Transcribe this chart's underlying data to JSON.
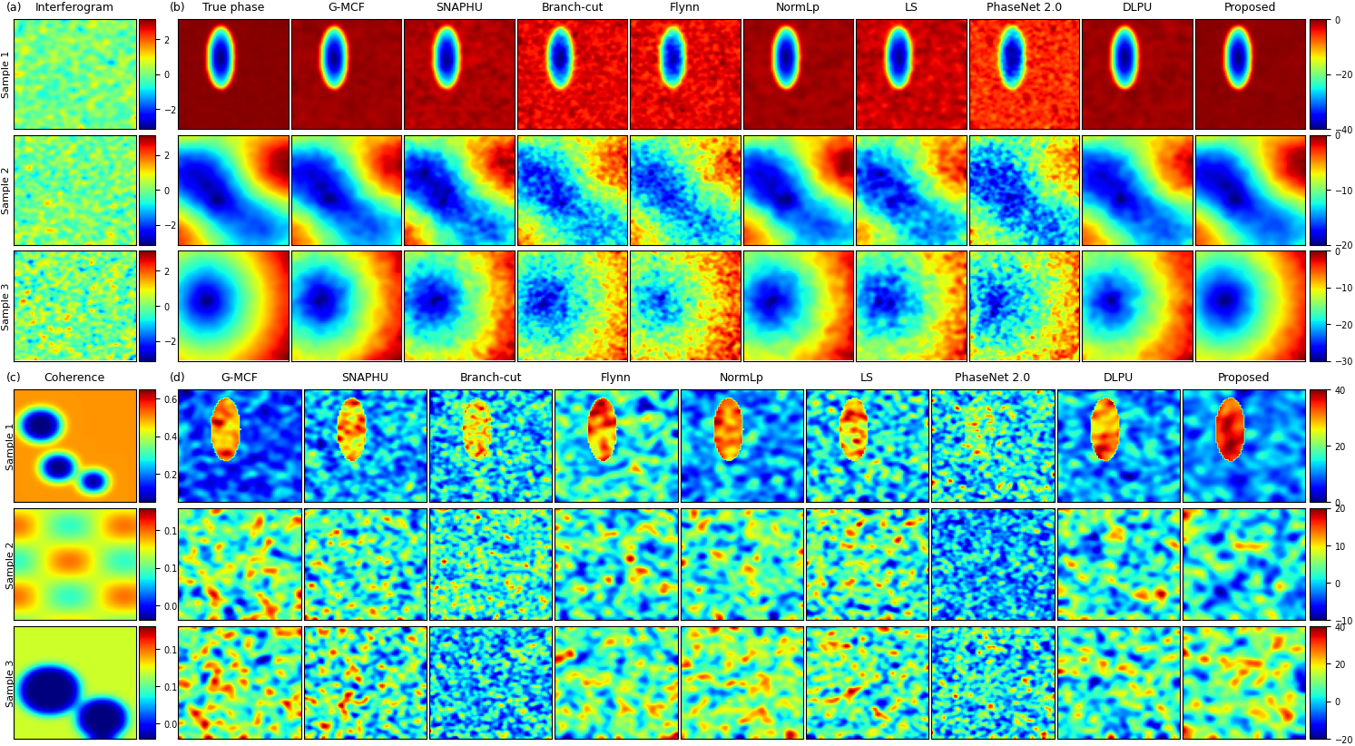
{
  "panel_a_label": "(a)",
  "panel_b_label": "(b)",
  "panel_c_label": "(c)",
  "panel_d_label": "(d)",
  "interferogram_label": "Interferogram",
  "coherence_label": "Coherence",
  "true_phase_label": "True phase",
  "b_methods": [
    "True phase",
    "G-MCF",
    "SNAPHU",
    "Branch-cut",
    "Flynn",
    "NormLp",
    "LS",
    "PhaseNet 2.0",
    "DLPU",
    "Proposed"
  ],
  "d_methods": [
    "G-MCF",
    "SNAPHU",
    "Branch-cut",
    "Flynn",
    "NormLp",
    "LS",
    "PhaseNet 2.0",
    "DLPU",
    "Proposed"
  ],
  "sample_labels": [
    "Sample 1",
    "Sample 2",
    "Sample 3"
  ],
  "b_colorbars": [
    {
      "ticks": [
        0,
        -20,
        -40
      ],
      "range": [
        0,
        -40
      ]
    },
    {
      "ticks": [
        0,
        -10,
        -20
      ],
      "range": [
        0,
        -20
      ]
    },
    {
      "ticks": [
        0,
        -10,
        -20,
        -30
      ],
      "range": [
        0,
        -30
      ]
    }
  ],
  "d_colorbars": [
    {
      "ticks": [
        40,
        20,
        0
      ],
      "range": [
        0,
        40
      ]
    },
    {
      "ticks": [
        20,
        10,
        0,
        -10
      ],
      "range": [
        -10,
        20
      ]
    },
    {
      "ticks": [
        40,
        20,
        0,
        -20
      ],
      "range": [
        -20,
        40
      ]
    }
  ],
  "a_colorbar_ticks": [
    2,
    0,
    -2
  ],
  "c_colorbars": [
    {
      "ticks": [
        0.6,
        0.4,
        0.2
      ]
    },
    {
      "ticks": [
        0.15,
        0.1,
        0.05
      ]
    },
    {
      "ticks": [
        0.15,
        0.1,
        0.05
      ]
    }
  ],
  "background_color": "#ffffff",
  "seed": 42
}
